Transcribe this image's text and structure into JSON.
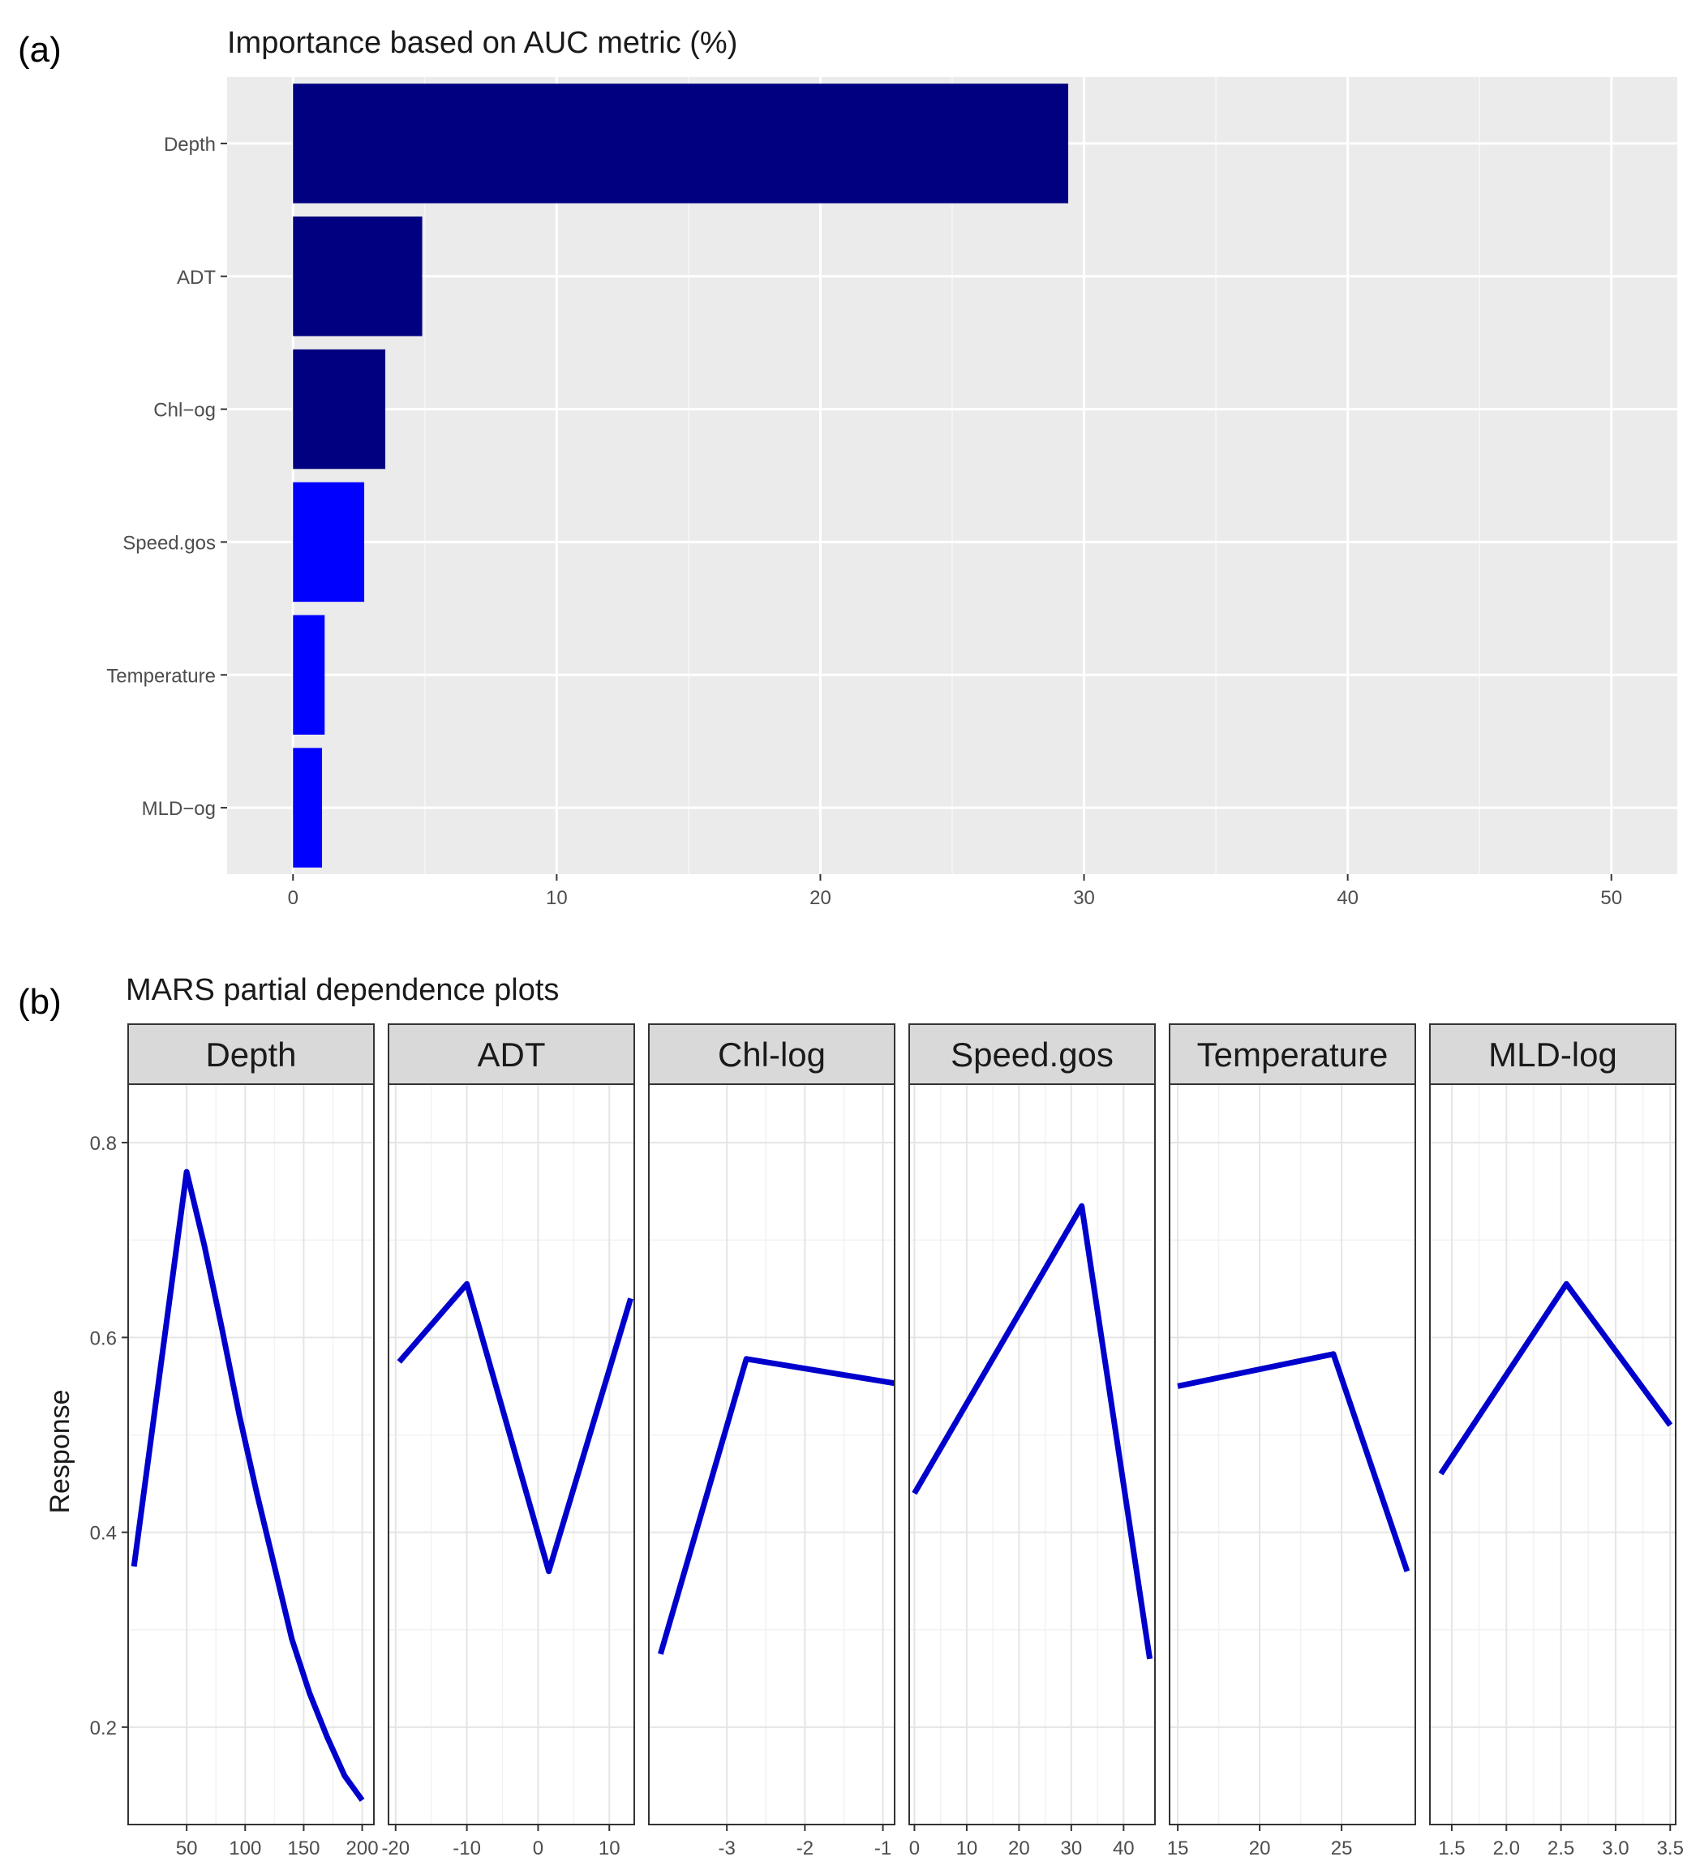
{
  "panels": {
    "a": "(a)",
    "b": "(b)"
  },
  "chart_data": [
    {
      "type": "bar",
      "orientation": "horizontal",
      "title": "Importance based on AUC metric (%)",
      "xlabel": "",
      "ylabel": "",
      "categories": [
        "Depth",
        "ADT",
        "Chl-og",
        "Speed.gos",
        "Temperature",
        "MLD-og"
      ],
      "category_labels": [
        "Depth",
        "ADT",
        "Chl−og",
        "Speed.gos",
        "Temperature",
        "MLD−og"
      ],
      "values": [
        29.4,
        4.9,
        3.5,
        2.7,
        1.2,
        1.1
      ],
      "bar_colors": [
        "#000080",
        "#000080",
        "#000080",
        "#0000ff",
        "#0000ff",
        "#0000ff"
      ],
      "xlim": [
        -2.5,
        52.5
      ],
      "xticks": [
        0,
        10,
        20,
        30,
        40,
        50
      ],
      "grid": true,
      "background": "#ebebeb"
    },
    {
      "type": "line",
      "title": "MARS partial dependence plots",
      "ylabel": "Response",
      "ylim": [
        0.1,
        0.86
      ],
      "yticks": [
        0.2,
        0.4,
        0.6,
        0.8
      ],
      "y_tick_labels": [
        "0.2",
        "0.4",
        "0.6",
        "0.8"
      ],
      "line_color": "#0000cd",
      "facets": [
        {
          "label": "Depth",
          "xlim": [
            0,
            210
          ],
          "xticks": [
            50,
            100,
            150,
            200
          ],
          "x_tick_labels": [
            "50",
            "100",
            "150",
            "200"
          ],
          "x": [
            5,
            50,
            65,
            80,
            95,
            110,
            125,
            140,
            155,
            170,
            185,
            200
          ],
          "y": [
            0.365,
            0.77,
            0.695,
            0.61,
            0.52,
            0.44,
            0.365,
            0.29,
            0.235,
            0.19,
            0.15,
            0.125
          ]
        },
        {
          "label": "ADT",
          "xlim": [
            -21,
            13.5
          ],
          "xticks": [
            -20,
            -10,
            0,
            10
          ],
          "x_tick_labels": [
            "-20",
            "-10",
            "0",
            "10"
          ],
          "x": [
            -19.5,
            -10,
            1.5,
            13
          ],
          "y": [
            0.575,
            0.655,
            0.36,
            0.64
          ]
        },
        {
          "label": "Chl-log",
          "xlim": [
            -4.0,
            -0.85
          ],
          "xticks": [
            -3,
            -2,
            -1
          ],
          "x_tick_labels": [
            "-3",
            "-2",
            "-1"
          ],
          "x": [
            -3.85,
            -2.75,
            -0.85
          ],
          "y": [
            0.275,
            0.578,
            0.553
          ]
        },
        {
          "label": "Speed.gos",
          "xlim": [
            -1,
            46
          ],
          "xticks": [
            0,
            10,
            20,
            30,
            40
          ],
          "x_tick_labels": [
            "0",
            "10",
            "20",
            "30",
            "40"
          ],
          "x": [
            0,
            32,
            45
          ],
          "y": [
            0.44,
            0.735,
            0.27
          ]
        },
        {
          "label": "Temperature",
          "xlim": [
            14.5,
            29.5
          ],
          "xticks": [
            15,
            20,
            25
          ],
          "x_tick_labels": [
            "15",
            "20",
            "25"
          ],
          "x": [
            15,
            24.5,
            29
          ],
          "y": [
            0.55,
            0.583,
            0.36
          ]
        },
        {
          "label": "MLD-log",
          "xlim": [
            1.3,
            3.55
          ],
          "xticks": [
            1.5,
            2.0,
            2.5,
            3.0,
            3.5
          ],
          "x_tick_labels": [
            "1.5",
            "2.0",
            "2.5",
            "3.0",
            "3.5"
          ],
          "x": [
            1.4,
            2.55,
            3.5
          ],
          "y": [
            0.46,
            0.655,
            0.51
          ]
        }
      ]
    }
  ]
}
